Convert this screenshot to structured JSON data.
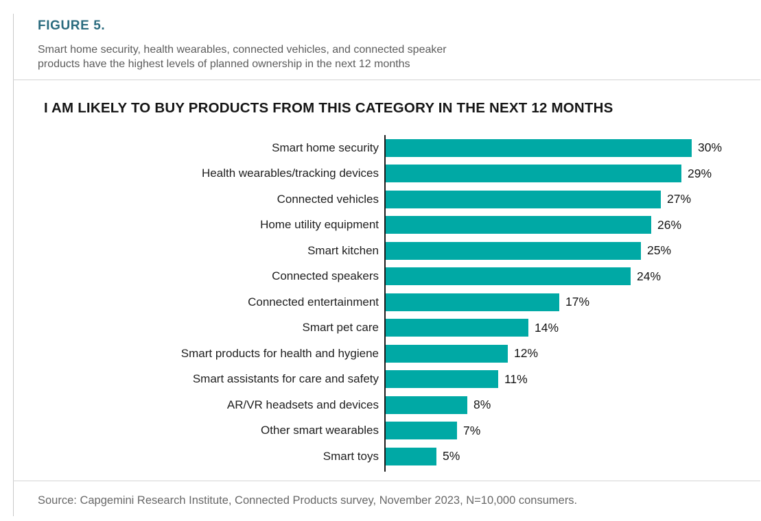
{
  "figure": {
    "label": "FIGURE 5.",
    "subtitle": "Smart home security, health wearables, connected vehicles, and connected speaker products have the highest levels of planned ownership in the next 12 months"
  },
  "chart_data": {
    "type": "bar",
    "orientation": "horizontal",
    "title": "I AM LIKELY TO BUY PRODUCTS FROM THIS CATEGORY IN THE NEXT 12 MONTHS",
    "categories": [
      "Smart home security",
      "Health wearables/tracking devices",
      "Connected vehicles",
      "Home utility equipment",
      "Smart kitchen",
      "Connected speakers",
      "Connected entertainment",
      "Smart pet care",
      "Smart products for health and hygiene",
      "Smart assistants for care and safety",
      "AR/VR headsets and devices",
      "Other smart wearables",
      "Smart toys"
    ],
    "values": [
      30,
      29,
      27,
      26,
      25,
      24,
      17,
      14,
      12,
      11,
      8,
      7,
      5
    ],
    "value_suffix": "%",
    "xlabel": "",
    "ylabel": "",
    "xlim": [
      0,
      32
    ],
    "grid": false,
    "legend": false,
    "bar_color": "#00a9a5",
    "data_labels": true
  },
  "footer": {
    "source": "Source: Capgemini Research Institute, Connected Products survey, November 2023, N=10,000 consumers."
  },
  "colors": {
    "bar": "#00a9a5",
    "figure_label": "#2a6b7e",
    "subtitle_text": "#5c5c5c",
    "axis": "#1a1a1a",
    "divider": "#d4d4d4",
    "source_text": "#686868"
  }
}
